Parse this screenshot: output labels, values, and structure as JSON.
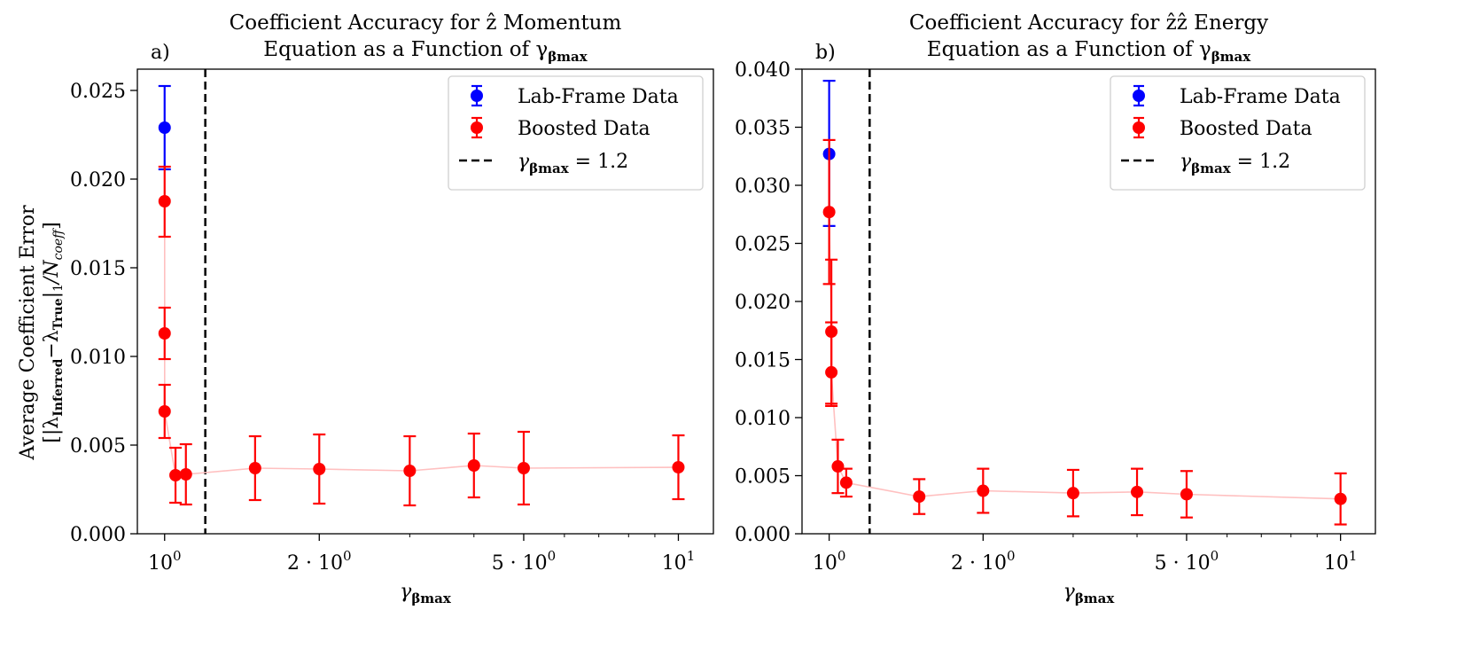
{
  "figure": {
    "shared_ylabel_line1": "Average Coefficient Error",
    "shared_ylabel_line2": "[|λ",
    "shared_ylabel_sub1": "Inferred",
    "shared_ylabel_mid": "−λ",
    "shared_ylabel_sub2": "True",
    "shared_ylabel_end": "|",
    "shared_ylabel_sub3": "1",
    "shared_ylabel_tail": "/N",
    "shared_ylabel_sub4": "coeff",
    "shared_ylabel_close": "]"
  },
  "chart_data": [
    {
      "type": "scatter",
      "panel_label": "a)",
      "title_line1": "Coefficient Accuracy for  ẑ Momentum",
      "title_line2": "Equation as a Function of γ",
      "title_sub": "βmax",
      "xlabel": "γ",
      "xlabel_sub": "βmax",
      "xscale": "log",
      "xlim": [
        0.885,
        11.7
      ],
      "ylim": [
        0.0,
        0.0262
      ],
      "yticks": [
        0.0,
        0.005,
        0.01,
        0.015,
        0.02,
        0.025
      ],
      "ytick_labels": [
        "0.000",
        "0.005",
        "0.010",
        "0.015",
        "0.020",
        "0.025"
      ],
      "xticks": [
        1,
        2,
        5,
        10
      ],
      "xtick_labels": [
        {
          "base": "10",
          "sup": "0"
        },
        {
          "base": "2 · 10",
          "sup": "0"
        },
        {
          "base": "5 · 10",
          "sup": "0"
        },
        {
          "base": "10",
          "sup": "1"
        }
      ],
      "vline": {
        "x": 1.2,
        "label": "γ",
        "label_sub": "βmax",
        "label_value": " = 1.2"
      },
      "legend": {
        "position": "top-right",
        "entries": [
          "Lab-Frame Data",
          "Boosted Data"
        ]
      },
      "series": [
        {
          "name": "Lab-Frame Data",
          "color": "#0000ff",
          "points": [
            {
              "x": 1.0,
              "y": 0.0229,
              "err_lo": 0.00235,
              "err_hi": 0.00235
            }
          ]
        },
        {
          "name": "Boosted Data",
          "color": "#ff0000",
          "line_color": "#ffc0c0",
          "points": [
            {
              "x": 1.0,
              "y": 0.01875,
              "err_lo": 0.002,
              "err_hi": 0.00195
            },
            {
              "x": 1.0,
              "y": 0.0113,
              "err_lo": 0.00145,
              "err_hi": 0.00145
            },
            {
              "x": 1.0,
              "y": 0.0069,
              "err_lo": 0.0015,
              "err_hi": 0.0015
            },
            {
              "x": 1.05,
              "y": 0.0033,
              "err_lo": 0.00155,
              "err_hi": 0.00155
            },
            {
              "x": 1.1,
              "y": 0.00335,
              "err_lo": 0.0017,
              "err_hi": 0.0017
            },
            {
              "x": 1.5,
              "y": 0.0037,
              "err_lo": 0.0018,
              "err_hi": 0.0018
            },
            {
              "x": 2.0,
              "y": 0.00365,
              "err_lo": 0.00195,
              "err_hi": 0.00195
            },
            {
              "x": 3.0,
              "y": 0.00355,
              "err_lo": 0.00195,
              "err_hi": 0.00195
            },
            {
              "x": 4.0,
              "y": 0.00385,
              "err_lo": 0.0018,
              "err_hi": 0.0018
            },
            {
              "x": 5.0,
              "y": 0.0037,
              "err_lo": 0.00205,
              "err_hi": 0.00205
            },
            {
              "x": 10.0,
              "y": 0.00375,
              "err_lo": 0.0018,
              "err_hi": 0.0018
            }
          ]
        }
      ]
    },
    {
      "type": "scatter",
      "panel_label": "b)",
      "title_line1": "Coefficient Accuracy for ẑẑ Energy",
      "title_line2": "Equation as a Function of γ",
      "title_sub": "βmax",
      "xlabel": "γ",
      "xlabel_sub": "βmax",
      "xscale": "log",
      "xlim": [
        0.885,
        11.7
      ],
      "ylim": [
        0.0,
        0.04
      ],
      "yticks": [
        0.0,
        0.005,
        0.01,
        0.015,
        0.02,
        0.025,
        0.03,
        0.035,
        0.04
      ],
      "ytick_labels": [
        "0.000",
        "0.005",
        "0.010",
        "0.015",
        "0.020",
        "0.025",
        "0.030",
        "0.035",
        "0.040"
      ],
      "xticks": [
        1,
        2,
        5,
        10
      ],
      "xtick_labels": [
        {
          "base": "10",
          "sup": "0"
        },
        {
          "base": "2 · 10",
          "sup": "0"
        },
        {
          "base": "5 · 10",
          "sup": "0"
        },
        {
          "base": "10",
          "sup": "1"
        }
      ],
      "vline": {
        "x": 1.2,
        "label": "γ",
        "label_sub": "βmax",
        "label_value": " = 1.2"
      },
      "legend": {
        "position": "top-right",
        "entries": [
          "Lab-Frame Data",
          "Boosted Data"
        ]
      },
      "series": [
        {
          "name": "Lab-Frame Data",
          "color": "#0000ff",
          "points": [
            {
              "x": 1.0,
              "y": 0.0327,
              "err_lo": 0.0062,
              "err_hi": 0.0063
            }
          ]
        },
        {
          "name": "Boosted Data",
          "color": "#ff0000",
          "line_color": "#ffc0c0",
          "points": [
            {
              "x": 1.0,
              "y": 0.0277,
              "err_lo": 0.0062,
              "err_hi": 0.0062
            },
            {
              "x": 1.01,
              "y": 0.0174,
              "err_lo": 0.0062,
              "err_hi": 0.0062
            },
            {
              "x": 1.01,
              "y": 0.0139,
              "err_lo": 0.0029,
              "err_hi": 0.0043
            },
            {
              "x": 1.04,
              "y": 0.0058,
              "err_lo": 0.0023,
              "err_hi": 0.0023
            },
            {
              "x": 1.08,
              "y": 0.0044,
              "err_lo": 0.0012,
              "err_hi": 0.0012
            },
            {
              "x": 1.5,
              "y": 0.0032,
              "err_lo": 0.0015,
              "err_hi": 0.0015
            },
            {
              "x": 2.0,
              "y": 0.0037,
              "err_lo": 0.0019,
              "err_hi": 0.0019
            },
            {
              "x": 3.0,
              "y": 0.0035,
              "err_lo": 0.002,
              "err_hi": 0.002
            },
            {
              "x": 4.0,
              "y": 0.0036,
              "err_lo": 0.002,
              "err_hi": 0.002
            },
            {
              "x": 5.0,
              "y": 0.0034,
              "err_lo": 0.002,
              "err_hi": 0.002
            },
            {
              "x": 10.0,
              "y": 0.003,
              "err_lo": 0.0022,
              "err_hi": 0.0022
            }
          ]
        }
      ]
    }
  ]
}
